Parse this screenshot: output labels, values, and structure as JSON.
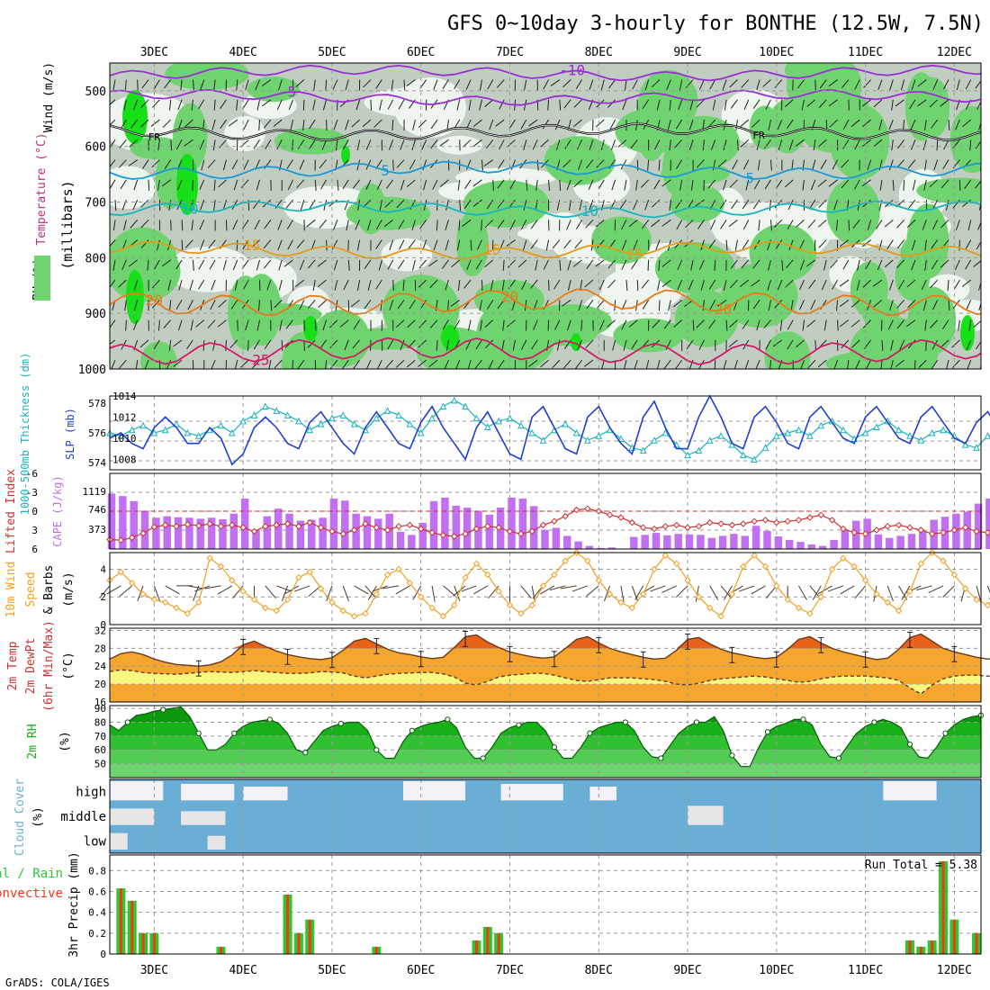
{
  "chart_data": {
    "type": "meteogram",
    "title": "GFS 0~10day 3-hourly for BONTHE (12.5W, 7.5N)",
    "credit": "GrADS: COLA/IGES",
    "date_labels": [
      "3DEC",
      "4DEC",
      "5DEC",
      "6DEC",
      "7DEC",
      "8DEC",
      "9DEC",
      "10DEC",
      "11DEC",
      "12DEC"
    ],
    "time_axis": {
      "start_day": 2.5,
      "end_day": 12.3,
      "step_hours": 3
    },
    "colors": {
      "rh_light": "#c0cdc0",
      "rh_mid": "#6fd36f",
      "rh_dark": "#18e018",
      "rh_pale": "#eef5ee",
      "grid": "#999999",
      "temp_shade": "#f5a62e",
      "temp_peak": "#e8621a",
      "dew_shade": "#f8f880",
      "green_band": "#3ccc3c",
      "cape_bar": "#c070f0",
      "cloud": "#6aaed6",
      "rain": "#2ec82e",
      "conv": "#f03a1a",
      "slp": "#1f3fd0",
      "thick": "#18b4c0",
      "li": "#d03030",
      "wind10": "#f0a020"
    },
    "upper_panel": {
      "ylabel_main": "(millibars)",
      "ylabel_wind": "Wind (m/s)",
      "ylabel_temp": "Temperature (°C)",
      "ylabel_rh": "RH (%)",
      "y_ticks": [
        500,
        600,
        700,
        800,
        900,
        1000
      ],
      "y_range": [
        450,
        1000
      ],
      "temp_contours": [
        {
          "label": "-10",
          "color": "#9a2fd6",
          "base_mb": 468,
          "amp": 8,
          "labels_at": [
            7.7
          ]
        },
        {
          "label": "-5",
          "color": "#9a2fd6",
          "base_mb": 512,
          "amp": 8,
          "labels_at": [
            4.5
          ]
        },
        {
          "label": "FR",
          "color": "#000000",
          "base_mb": 574,
          "amp": 9,
          "labels_at": [
            3.0,
            9.8
          ]
        },
        {
          "label": "5",
          "color": "#1c9ad6",
          "base_mb": 643,
          "amp": 10,
          "labels_at": [
            5.6,
            9.7
          ]
        },
        {
          "label": "10",
          "color": "#18b4c0",
          "base_mb": 713,
          "amp": 9,
          "labels_at": [
            3.4,
            7.9
          ]
        },
        {
          "label": "15",
          "color": "#e69a1a",
          "base_mb": 787,
          "amp": 10,
          "labels_at": [
            4.1,
            6.8,
            8.4
          ]
        },
        {
          "label": "20",
          "color": "#e87a18",
          "base_mb": 880,
          "amp": 18,
          "labels_at": [
            3.0,
            7.0,
            9.4
          ]
        },
        {
          "label": "25",
          "color": "#d61a6a",
          "base_mb": 968,
          "amp": 18,
          "labels_at": [
            4.2
          ]
        }
      ]
    },
    "slp_panel": {
      "ylabel_left": "1000-500mb Thickness (dm)",
      "ylabel_right": "SLP (mb)",
      "left_ticks": [
        574,
        576,
        578
      ],
      "right_ticks": [
        1008,
        1010,
        1012,
        1014
      ],
      "slp_range": [
        1007,
        1014
      ],
      "thick_range": [
        573.5,
        578.5
      ],
      "slp": [
        1010,
        1010.5,
        1009.5,
        1009,
        1011,
        1012,
        1011,
        1009.5,
        1009.5,
        1011,
        1010,
        1007.5,
        1008.5,
        1011,
        1012,
        1011,
        1009.5,
        1009,
        1011.5,
        1012.5,
        1011,
        1009.5,
        1008.5,
        1011,
        1012.5,
        1011,
        1009.5,
        1009,
        1011.5,
        1013,
        1011,
        1009.5,
        1008,
        1011,
        1012.5,
        1010.5,
        1008.5,
        1008,
        1012,
        1013,
        1011,
        1009,
        1008.5,
        1012,
        1013,
        1011,
        1009.5,
        1008.5,
        1012,
        1013.5,
        1011,
        1009,
        1009,
        1012,
        1014,
        1012,
        1009.5,
        1009,
        1012,
        1013,
        1011.5,
        1009.5,
        1009,
        1012,
        1013,
        1011.5,
        1010,
        1009.5,
        1012,
        1013,
        1011.5,
        1010,
        1009.5,
        1012,
        1013,
        1011.5,
        1010,
        1009.5,
        1011.5,
        1012.5,
        1011,
        1010,
        1010.5
      ],
      "thickness": [
        576,
        575.8,
        576.2,
        576.5,
        576,
        576.2,
        576.6,
        576,
        575.8,
        576.2,
        576.5,
        576,
        576.8,
        577.2,
        577.8,
        577.5,
        577.2,
        576.8,
        576.2,
        576.6,
        577,
        577.2,
        576.6,
        576.2,
        577,
        577.5,
        577.2,
        576.6,
        576,
        577,
        577.8,
        578.2,
        577.8,
        577,
        576.4,
        576.8,
        577,
        576.5,
        576,
        575.5,
        576.2,
        576.6,
        576,
        575.5,
        575.8,
        576.2,
        575.6,
        575,
        574.8,
        575.5,
        576,
        575.2,
        574.5,
        574.8,
        575.5,
        575.8,
        575.2,
        574.5,
        574.2,
        575,
        575.8,
        576,
        576.2,
        575.8,
        576.5,
        576.8,
        576.2,
        575.6,
        576,
        576.4,
        576.8,
        576.2,
        575.8,
        575.5,
        576,
        576.2,
        575.8,
        575.2,
        575,
        575.8,
        576,
        575.2,
        574.8
      ]
    },
    "cape_panel": {
      "ylabel_left": "Lifted Index",
      "ylabel_right": "CAPE (J/kg)",
      "li_ticks": [
        "-6",
        "-3",
        "0",
        "3",
        "6"
      ],
      "cape_ticks": [
        "373",
        "746",
        "1119"
      ],
      "cape_max": 1500,
      "li_range": [
        6,
        -6
      ],
      "cape": [
        1100,
        1050,
        950,
        750,
        620,
        650,
        630,
        620,
        600,
        620,
        590,
        700,
        1000,
        380,
        650,
        800,
        700,
        560,
        580,
        620,
        1000,
        960,
        700,
        650,
        600,
        700,
        340,
        280,
        520,
        950,
        1020,
        860,
        820,
        760,
        680,
        820,
        1020,
        1000,
        850,
        380,
        420,
        260,
        150,
        60,
        20,
        30,
        0,
        240,
        280,
        320,
        270,
        300,
        290,
        280,
        220,
        260,
        300,
        260,
        460,
        360,
        250,
        180,
        140,
        90,
        60,
        180,
        380,
        560,
        600,
        290,
        220,
        260,
        300,
        340,
        580,
        640,
        700,
        740,
        900,
        1000,
        1050,
        1100,
        1150,
        1300,
        1350,
        1200,
        1000,
        1000,
        1000
      ],
      "li": [
        -4.5,
        -4.6,
        -4.2,
        -3.5,
        -2.5,
        -2.2,
        -2.4,
        -2.1,
        -2.3,
        -2.0,
        -2.4,
        -2.2,
        -2.6,
        -3.2,
        -2.4,
        -2.2,
        -2.0,
        -2.4,
        -1.8,
        -2.6,
        -3.2,
        -3.6,
        -3.0,
        -2.0,
        -2.6,
        -3.0,
        -2.4,
        -2.2,
        -2.8,
        -3.4,
        -3.8,
        -4.0,
        -3.6,
        -2.8,
        -2.4,
        -2.6,
        -3.2,
        -3.6,
        -3.2,
        -2.2,
        -1.6,
        -0.8,
        0.2,
        0.4,
        0.0,
        -0.6,
        -1.0,
        -1.8,
        -2.6,
        -2.8,
        -2.4,
        -2.2,
        -2.6,
        -2.4,
        -1.8,
        -2.0,
        -2.2,
        -2.0,
        -1.6,
        -1.4,
        -1.8,
        -1.6,
        -1.4,
        -1.0,
        -0.6,
        -1.4,
        -2.8,
        -3.4,
        -3.6,
        -3.0,
        -2.4,
        -2.2,
        -2.6,
        -3.0,
        -3.6,
        -3.4,
        -3.0,
        -2.6,
        -3.2,
        -3.4,
        -3.0,
        -3.4,
        -3.6,
        -3.8,
        -3.2,
        -3.0,
        -2.4,
        -1.8,
        -1.6
      ]
    },
    "wind10_panel": {
      "ylabel_a": "10m Wind",
      "ylabel_b": "Speed",
      "ylabel_c": "& Barbs",
      "ylabel_units": "(m/s)",
      "ticks": [
        "0",
        "2",
        "4"
      ],
      "range": [
        0,
        5.2
      ],
      "speed": [
        3.2,
        3.8,
        3.0,
        2.2,
        1.8,
        1.6,
        1.2,
        0.8,
        1.6,
        4.8,
        4.2,
        3.2,
        2.4,
        1.8,
        1.2,
        1.0,
        1.8,
        3.4,
        3.8,
        2.6,
        1.6,
        1.0,
        0.6,
        0.8,
        2.2,
        3.6,
        4.0,
        3.0,
        2.0,
        1.2,
        0.6,
        1.4,
        3.4,
        4.4,
        3.6,
        2.4,
        1.4,
        0.8,
        1.4,
        2.8,
        3.6,
        4.6,
        5.2,
        4.6,
        3.2,
        2.2,
        1.6,
        1.2,
        2.2,
        4.0,
        5.0,
        4.4,
        3.2,
        2.0,
        1.2,
        0.6,
        2.2,
        4.2,
        5.0,
        4.2,
        2.8,
        1.8,
        1.2,
        0.8,
        2.0,
        4.0,
        4.8,
        4.2,
        3.2,
        2.2,
        1.6,
        1.0,
        2.4,
        4.4,
        5.2,
        4.6,
        3.6,
        2.6,
        1.8,
        1.4,
        2.4,
        4.4,
        5.4,
        4.6,
        3.4,
        2.4,
        1.6,
        1.2,
        0.8
      ],
      "barb_dir": [
        220,
        240,
        230,
        200,
        160,
        120,
        90,
        100,
        200,
        250,
        260,
        240,
        220,
        180,
        140,
        110,
        200,
        240,
        250,
        230,
        200,
        160,
        120,
        140,
        210,
        250,
        260,
        240,
        210,
        170,
        130,
        160,
        230,
        250,
        240,
        220,
        180,
        140,
        170,
        220,
        240,
        255,
        260,
        250,
        230,
        200,
        170,
        160,
        210,
        240,
        250,
        245,
        225,
        190,
        150,
        140,
        210,
        240,
        250,
        240,
        220,
        180,
        150,
        140,
        210,
        240,
        250,
        240,
        220,
        190,
        160,
        150,
        210,
        245,
        255,
        245,
        225,
        195,
        165,
        160,
        215,
        240,
        255,
        245,
        225,
        190,
        160,
        150,
        140
      ]
    },
    "temp_panel": {
      "ylabel_a": "2m Temp",
      "ylabel_b": "2m DewPt",
      "ylabel_c": "(6hr Min/Max)",
      "ylabel_units": "(°C)",
      "ticks": [
        "16",
        "20",
        "24",
        "28",
        "32"
      ],
      "range": [
        16,
        32.5
      ],
      "temp": [
        25.6,
        26.8,
        27.2,
        26.6,
        25.6,
        24.9,
        24.4,
        24.2,
        24.0,
        24.3,
        25.0,
        26.5,
        28.8,
        29.6,
        28.4,
        27.4,
        26.6,
        26.1,
        25.7,
        25.5,
        25.9,
        27.6,
        29.6,
        30.2,
        29.0,
        27.8,
        27.0,
        26.6,
        26.1,
        25.7,
        26.0,
        28.2,
        30.6,
        31.0,
        29.4,
        28.2,
        27.2,
        26.6,
        26.1,
        25.8,
        26.1,
        28.0,
        30.0,
        30.6,
        29.2,
        28.0,
        27.2,
        26.6,
        26.0,
        25.6,
        25.8,
        27.6,
        30.0,
        30.4,
        29.0,
        27.8,
        27.0,
        26.5,
        26.0,
        25.7,
        26.0,
        27.8,
        30.0,
        30.6,
        29.2,
        28.0,
        27.2,
        26.6,
        26.0,
        25.5,
        25.8,
        27.8,
        30.4,
        31.2,
        29.6,
        28.0,
        27.2,
        26.6,
        26.0,
        25.6,
        25.8,
        27.6,
        29.8,
        30.2,
        29.0,
        27.8,
        27.0,
        26.6,
        25.8,
        25.2,
        25.0,
        24.8
      ],
      "dew": [
        22.8,
        23.2,
        23.0,
        22.6,
        22.4,
        22.3,
        22.2,
        22.4,
        22.6,
        22.8,
        22.7,
        22.6,
        22.8,
        23.0,
        22.8,
        22.6,
        22.4,
        22.4,
        22.5,
        22.8,
        22.7,
        22.5,
        21.8,
        21.4,
        21.8,
        22.2,
        22.4,
        22.5,
        22.6,
        22.6,
        22.3,
        21.6,
        20.2,
        19.8,
        20.6,
        21.6,
        22.0,
        22.2,
        22.4,
        22.4,
        22.0,
        21.4,
        20.8,
        20.6,
        21.0,
        21.4,
        21.4,
        21.4,
        21.2,
        21.0,
        20.6,
        20.0,
        19.8,
        20.2,
        20.8,
        21.2,
        21.4,
        21.6,
        21.8,
        21.6,
        21.2,
        20.8,
        20.4,
        20.6,
        21.2,
        21.6,
        21.8,
        21.8,
        21.8,
        21.6,
        21.4,
        20.8,
        19.2,
        17.8,
        19.8,
        21.2,
        21.8,
        22.0,
        22.0,
        21.8,
        21.6,
        21.2,
        20.8,
        20.8,
        21.4,
        21.8,
        22.0,
        22.2,
        22.2,
        22.2,
        22.3,
        22.4,
        22.6
      ],
      "error_bars_at": [
        3.5,
        4.0,
        4.5,
        5.0,
        5.5,
        6.0,
        6.5,
        7.0,
        7.5,
        8.0,
        8.5,
        9.0,
        9.5,
        10.0,
        10.5,
        11.0,
        11.5,
        12.0
      ]
    },
    "rh_panel": {
      "ylabel_a": "2m RH",
      "ylabel_units": "(%)",
      "ticks": [
        "50",
        "60",
        "70",
        "80",
        "90"
      ],
      "range": [
        40,
        92
      ],
      "rh": [
        78,
        74,
        80,
        85,
        86,
        88,
        89,
        90,
        91,
        84,
        72,
        60,
        60,
        64,
        72,
        77,
        80,
        81,
        82,
        79,
        72,
        60,
        58,
        66,
        74,
        77,
        79,
        80,
        80,
        74,
        60,
        54,
        54,
        66,
        74,
        77,
        79,
        80,
        82,
        76,
        62,
        54,
        54,
        62,
        72,
        76,
        78,
        80,
        80,
        74,
        62,
        54,
        54,
        62,
        72,
        76,
        78,
        80,
        80,
        74,
        62,
        55,
        54,
        63,
        72,
        77,
        80,
        80,
        84,
        74,
        56,
        48,
        48,
        62,
        73,
        77,
        79,
        82,
        82,
        78,
        64,
        55,
        54,
        63,
        72,
        77,
        80,
        82,
        80,
        76,
        64,
        55,
        54,
        62,
        72,
        78,
        82,
        84,
        85
      ]
    },
    "cloud_panel": {
      "ylabel_a": "Cloud Cover",
      "ylabel_units": "(%)",
      "levels": [
        "high",
        "middle",
        "low"
      ]
    },
    "precip_panel": {
      "ylabel_a": "3hr Precip (mm)",
      "ylabel_b": "Total / Rain",
      "ylabel_c": "Convective",
      "run_total": "Run Total = 5.38",
      "ticks": [
        "0",
        "0.2",
        "0.4",
        "0.6",
        "0.8"
      ],
      "range": [
        0,
        0.95
      ],
      "bars": [
        {
          "day": 2.625,
          "v": 0.63
        },
        {
          "day": 2.75,
          "v": 0.51
        },
        {
          "day": 2.875,
          "v": 0.2
        },
        {
          "day": 3.0,
          "v": 0.2
        },
        {
          "day": 3.75,
          "v": 0.07
        },
        {
          "day": 4.5,
          "v": 0.57
        },
        {
          "day": 4.625,
          "v": 0.2
        },
        {
          "day": 4.75,
          "v": 0.33
        },
        {
          "day": 5.5,
          "v": 0.07
        },
        {
          "day": 6.625,
          "v": 0.13
        },
        {
          "day": 6.75,
          "v": 0.26
        },
        {
          "day": 6.875,
          "v": 0.2
        },
        {
          "day": 11.5,
          "v": 0.13
        },
        {
          "day": 11.625,
          "v": 0.07
        },
        {
          "day": 11.75,
          "v": 0.13
        },
        {
          "day": 11.875,
          "v": 0.89
        },
        {
          "day": 12.0,
          "v": 0.33
        },
        {
          "day": 12.25,
          "v": 0.2
        }
      ]
    }
  }
}
